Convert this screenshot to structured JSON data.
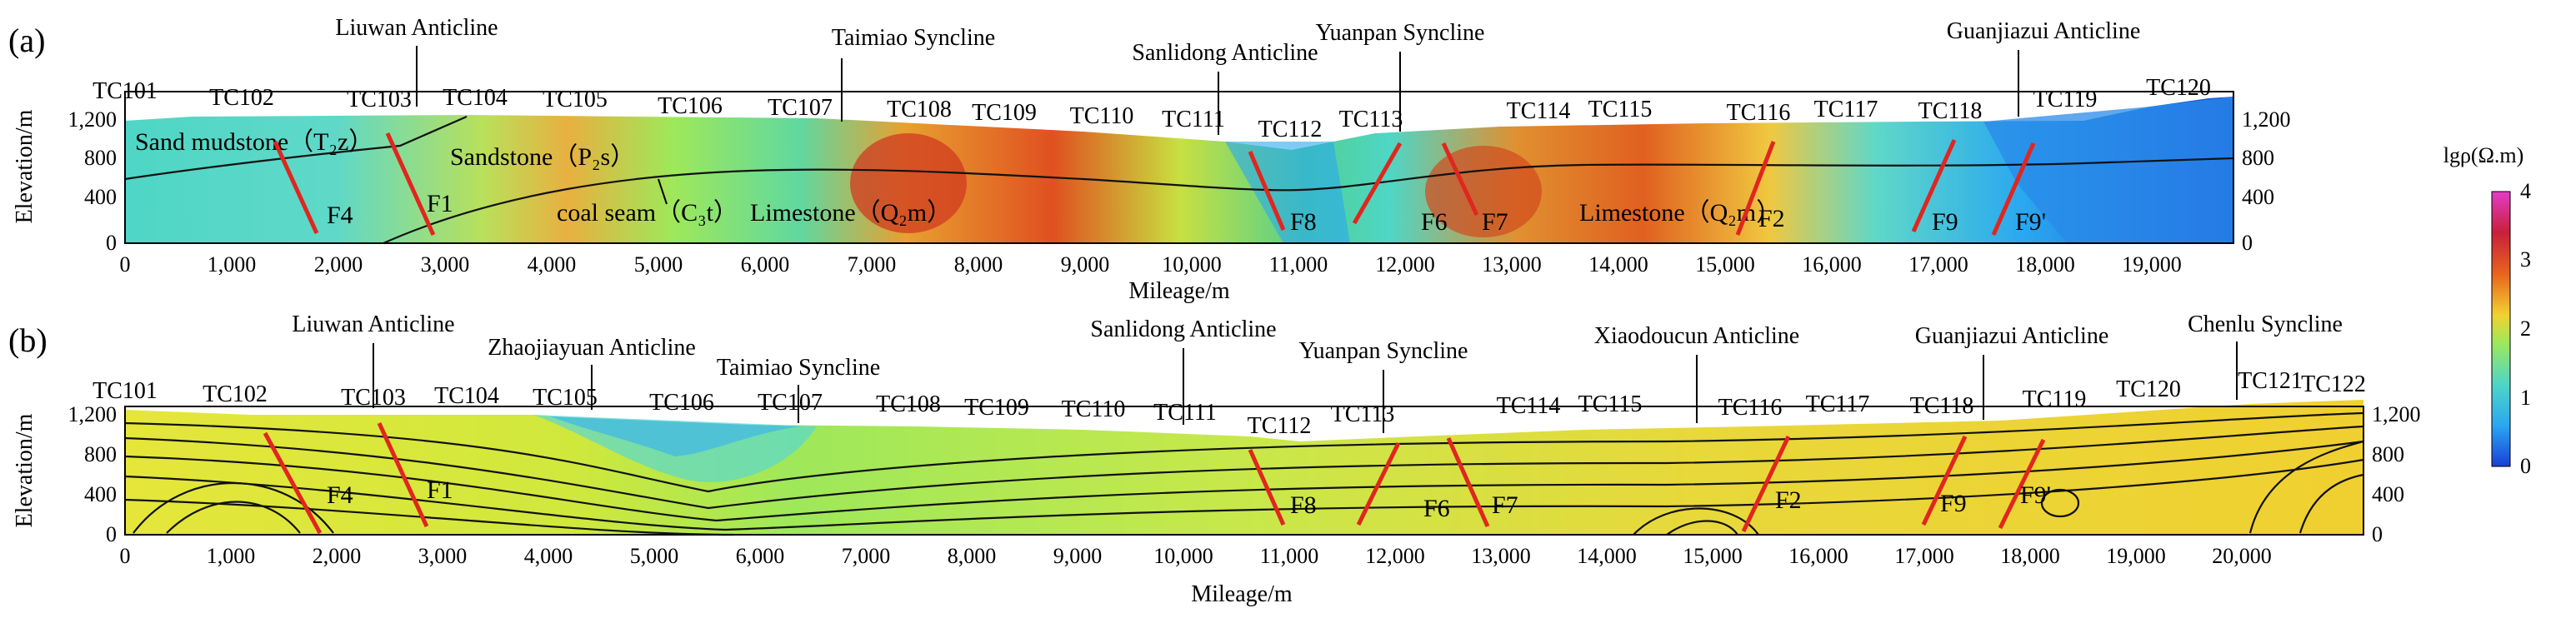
{
  "figure": {
    "colorbar": {
      "title": "lgρ(Ω.m)",
      "ticks": [
        "0",
        "1",
        "2",
        "3",
        "4"
      ],
      "stops": [
        "#1a3fd8",
        "#2aa8f0",
        "#4fd6c6",
        "#9ee85a",
        "#f2d230",
        "#e8641e",
        "#c8203a",
        "#e33cc8"
      ]
    },
    "axes_titles": {
      "x": "Mileage/m",
      "y": "Elevation/m"
    },
    "y_ticks": [
      "0",
      "400",
      "800",
      "1,200"
    ],
    "panel_a": {
      "label": "(a)",
      "x_ticks": [
        "0",
        "1,000",
        "2,000",
        "3,000",
        "4,000",
        "5,000",
        "6,000",
        "7,000",
        "8,000",
        "9,000",
        "10,000",
        "11,000",
        "12,000",
        "13,000",
        "14,000",
        "15,000",
        "16,000",
        "17,000",
        "18,000",
        "19,000"
      ],
      "stations": [
        "TC101",
        "TC102",
        "TC103",
        "TC104",
        "TC105",
        "TC106",
        "TC107",
        "TC108",
        "TC109",
        "TC110",
        "TC111",
        "TC112",
        "TC113",
        "TC114",
        "TC115",
        "TC116",
        "TC117",
        "TC118",
        "TC119",
        "TC120"
      ],
      "structures": [
        "Liuwan Anticline",
        "Taimiao Syncline",
        "Sanlidong Anticline",
        "Yuanpan Syncline",
        "Guanjiazui Anticline"
      ],
      "lithology": {
        "sand_mudstone": "Sand mudstone（T₂z）",
        "sandstone": "Sandstone（P₂s）",
        "coal_seam": "coal seam（C₃t）",
        "limestone_1": "Limestone（Q₂m）",
        "limestone_2": "Limestone（Q₂m）"
      },
      "faults": [
        "F4",
        "F1",
        "F8",
        "F6",
        "F7",
        "F2",
        "F9",
        "F9'"
      ]
    },
    "panel_b": {
      "label": "(b)",
      "x_ticks": [
        "0",
        "1,000",
        "2,000",
        "3,000",
        "4,000",
        "5,000",
        "6,000",
        "7,000",
        "8,000",
        "9,000",
        "10,000",
        "11,000",
        "12,000",
        "13,000",
        "14,000",
        "15,000",
        "16,000",
        "17,000",
        "18,000",
        "19,000",
        "20,000"
      ],
      "stations": [
        "TC101",
        "TC102",
        "TC103",
        "TC104",
        "TC105",
        "TC106",
        "TC107",
        "TC108",
        "TC109",
        "TC110",
        "TC111",
        "TC112",
        "TC113",
        "TC114",
        "TC115",
        "TC116",
        "TC117",
        "TC118",
        "TC119",
        "TC120",
        "TC121",
        "TC122"
      ],
      "structures": [
        "Liuwan Anticline",
        "Zhaojiayuan Anticline",
        "Taimiao Syncline",
        "Sanlidong Anticline",
        "Yuanpan Syncline",
        "Xiaodoucun Anticline",
        "Guanjiazui Anticline",
        "Chenlu Syncline"
      ],
      "faults": [
        "F4",
        "F1",
        "F8",
        "F6",
        "F7",
        "F2",
        "F9",
        "F9'"
      ]
    }
  }
}
